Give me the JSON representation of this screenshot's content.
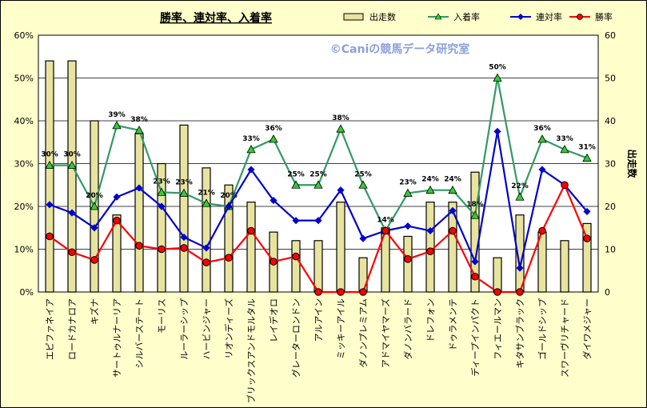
{
  "chart_data": {
    "type": "bar+line",
    "title": "勝率、連対率、入着率",
    "watermark": "©Caniの競馬データ研究室",
    "categories": [
      "エピファネイア",
      "ロードカナロア",
      "キズナ",
      "サートゥルナーリア",
      "シルバーステート",
      "モーリス",
      "ルーラーシップ",
      "ハービンジャー",
      "リオンディーズ",
      "ブリックスアンドモルタル",
      "レイデオロ",
      "グレーターロンドン",
      "アルアイン",
      "ミッキーアイル",
      "ダノンプレミアム",
      "アドマイヤマーズ",
      "ダノンバラード",
      "ドレフォン",
      "ドゥラメンテ",
      "ディープインパクト",
      "フィエールマン",
      "キタサンブラック",
      "ゴールドシップ",
      "スワーヴリチャード",
      "ダイワメジャー"
    ],
    "y_left": {
      "min": 0,
      "max": 60,
      "step": 10,
      "unit": "%",
      "tick_labels": [
        "0%",
        "10%",
        "20%",
        "30%",
        "40%",
        "50%",
        "60%"
      ]
    },
    "y_right": {
      "label": "出走数",
      "min": 0,
      "max": 60,
      "step": 10,
      "tick_labels": [
        "0",
        "10",
        "20",
        "30",
        "40",
        "50",
        "60"
      ]
    },
    "legend": {
      "placement": "top",
      "items": [
        {
          "key": "starts",
          "name": "出走数"
        },
        {
          "key": "place",
          "name": "入着率"
        },
        {
          "key": "rentai",
          "name": "連対率"
        },
        {
          "key": "win",
          "name": "勝率"
        }
      ]
    },
    "series": [
      {
        "key": "starts",
        "name": "出走数",
        "type": "bar",
        "axis": "right",
        "color": "#e8e4a0",
        "values": [
          54,
          54,
          40,
          18,
          37,
          30,
          39,
          29,
          25,
          21,
          14,
          12,
          12,
          21,
          8,
          15,
          13,
          21,
          21,
          28,
          8,
          18,
          14,
          12,
          16
        ]
      },
      {
        "key": "place",
        "name": "入着率",
        "type": "line",
        "axis": "left",
        "color": "#339966",
        "marker": "triangle",
        "marker_color": "#33cc33",
        "values": [
          29.6,
          29.6,
          20,
          38.9,
          37.8,
          23.3,
          23.1,
          20.7,
          20,
          33.3,
          35.7,
          25,
          25,
          38.1,
          25,
          14.3,
          23.1,
          23.8,
          23.8,
          17.9,
          50,
          22.2,
          35.7,
          33.3,
          31.3
        ],
        "labels": [
          "30%",
          "30%",
          "20%",
          "39%",
          "38%",
          "23%",
          "23%",
          "21%",
          "20%",
          "33%",
          "36%",
          "25%",
          "25%",
          "38%",
          "25%",
          "14%",
          "23%",
          "24%",
          "24%",
          "18%",
          "50%",
          "22%",
          "36%",
          "33%",
          "31%"
        ]
      },
      {
        "key": "rentai",
        "name": "連対率",
        "type": "line",
        "axis": "left",
        "color": "#0000cc",
        "marker": "diamond",
        "values": [
          20.4,
          18.5,
          15,
          22.2,
          24.3,
          20,
          12.8,
          10.3,
          20,
          28.6,
          21.4,
          16.7,
          16.7,
          23.8,
          12.5,
          14.3,
          15.4,
          14.3,
          19,
          7.1,
          37.5,
          5.6,
          28.6,
          25,
          18.8
        ]
      },
      {
        "key": "win",
        "name": "勝率",
        "type": "line",
        "axis": "left",
        "color": "#ff0000",
        "marker": "circle",
        "values": [
          13,
          9.3,
          7.5,
          16.7,
          10.8,
          10,
          10.3,
          6.9,
          8,
          14.3,
          7.1,
          8.3,
          0,
          0,
          0,
          14.3,
          7.7,
          9.5,
          14.3,
          3.6,
          0,
          0,
          14.3,
          25,
          12.5
        ]
      }
    ]
  }
}
